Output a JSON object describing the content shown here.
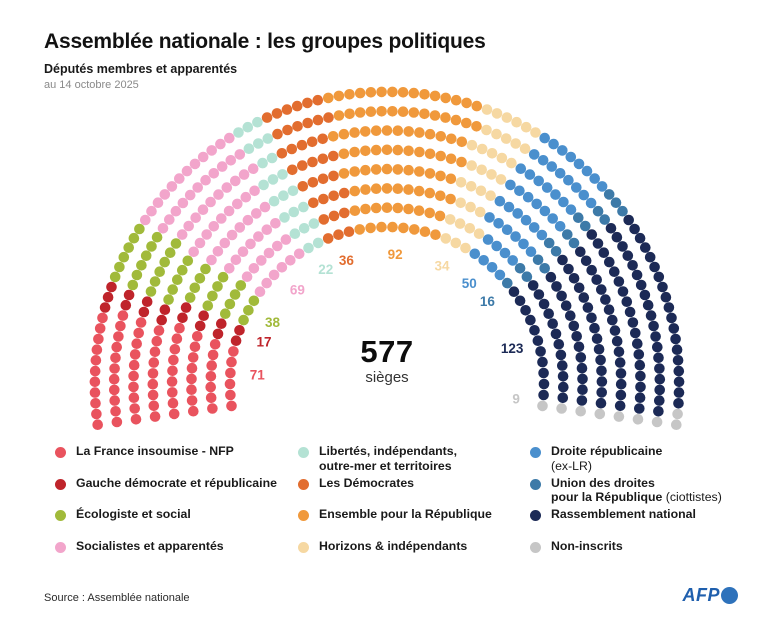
{
  "header": {
    "title": "Assemblée nationale : les groupes politiques",
    "subtitle": "Députés membres et apparentés",
    "date": "au 14 octobre 2025"
  },
  "center": {
    "total": "577",
    "unit": "sièges"
  },
  "chart_data": {
    "type": "parliament-hemicycle",
    "title": "Assemblée nationale : les groupes politiques",
    "total_seats": 577,
    "rows": 8,
    "parties": [
      {
        "name": "La France insoumise - NFP",
        "seats": 71,
        "color": "#e9535e"
      },
      {
        "name": "Gauche démocrate et républicaine",
        "seats": 17,
        "color": "#bf242b"
      },
      {
        "name": "Écologiste et social",
        "seats": 38,
        "color": "#a1ba3a"
      },
      {
        "name": "Socialistes et apparentés",
        "seats": 69,
        "color": "#f2a5cb"
      },
      {
        "name": "Libertés, indépendants, outre-mer et territoires",
        "seats": 22,
        "color": "#b4e2d4"
      },
      {
        "name": "Les Démocrates",
        "seats": 36,
        "color": "#e26d2f"
      },
      {
        "name": "Ensemble pour la République",
        "seats": 92,
        "color": "#f0993c"
      },
      {
        "name": "Horizons & indépendants",
        "seats": 34,
        "color": "#f6d8a2"
      },
      {
        "name": "Droite républicaine (ex-LR)",
        "seats": 50,
        "color": "#4a8fcd"
      },
      {
        "name": "Union des droites pour la République (ciottistes)",
        "seats": 16,
        "color": "#3d7aa8"
      },
      {
        "name": "Rassemblement national",
        "seats": 123,
        "color": "#1c2a56"
      },
      {
        "name": "Non-inscrits",
        "seats": 9,
        "color": "#c6c6c6"
      }
    ]
  },
  "legend": {
    "columns": [
      {
        "items": [
          {
            "color": "#e9535e",
            "lines": [
              {
                "b": "La France insoumise - NFP",
                "n": ""
              }
            ]
          },
          {
            "color": "#bf242b",
            "lines": [
              {
                "b": "Gauche démocrate et républicaine",
                "n": ""
              }
            ]
          },
          {
            "color": "#a1ba3a",
            "lines": [
              {
                "b": "Écologiste et social",
                "n": ""
              }
            ]
          },
          {
            "color": "#f2a5cb",
            "lines": [
              {
                "b": "Socialistes et apparentés",
                "n": ""
              }
            ]
          }
        ]
      },
      {
        "items": [
          {
            "color": "#b4e2d4",
            "lines": [
              {
                "b": "Libertés, indépendants,",
                "n": ""
              },
              {
                "b": "outre-mer et territoires",
                "n": ""
              }
            ]
          },
          {
            "color": "#e26d2f",
            "lines": [
              {
                "b": "Les Démocrates",
                "n": ""
              }
            ]
          },
          {
            "color": "#f0993c",
            "lines": [
              {
                "b": "Ensemble pour la République",
                "n": ""
              }
            ]
          },
          {
            "color": "#f6d8a2",
            "lines": [
              {
                "b": "Horizons & indépendants",
                "n": ""
              }
            ]
          }
        ]
      },
      {
        "items": [
          {
            "color": "#4a8fcd",
            "lines": [
              {
                "b": "Droite républicaine",
                "n": ""
              },
              {
                "b": "",
                "n": "(ex-LR)"
              }
            ]
          },
          {
            "color": "#3d7aa8",
            "lines": [
              {
                "b": "Union des droites",
                "n": ""
              },
              {
                "b": "pour la République",
                "n": " (ciottistes)"
              }
            ]
          },
          {
            "color": "#1c2a56",
            "lines": [
              {
                "b": "Rassemblement national",
                "n": ""
              }
            ]
          },
          {
            "color": "#c6c6c6",
            "lines": [
              {
                "b": "Non-inscrits",
                "n": ""
              }
            ]
          }
        ]
      }
    ]
  },
  "footer": {
    "source": "Source : Assemblée nationale",
    "afp": "AFP"
  }
}
